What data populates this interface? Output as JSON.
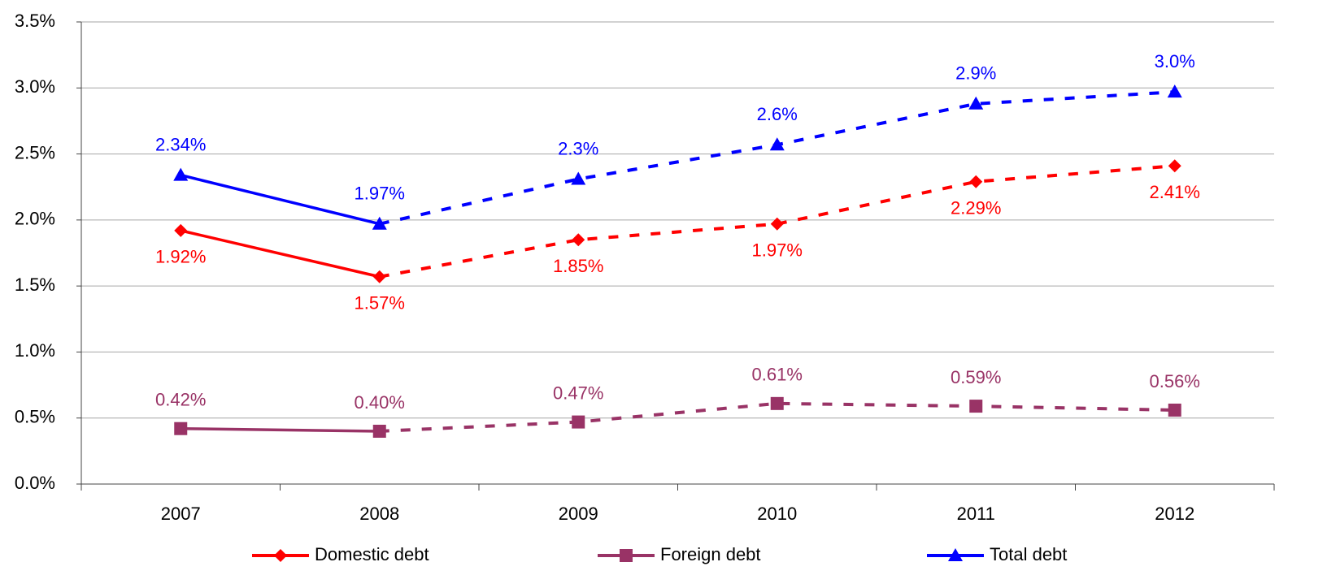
{
  "chart_data": {
    "type": "line",
    "categories": [
      "2007",
      "2008",
      "2009",
      "2010",
      "2011",
      "2012"
    ],
    "dashed_from": "2008",
    "series": [
      {
        "name": "Domestic debt",
        "color": "#ff0000",
        "marker": "diamond",
        "values": [
          1.92,
          1.57,
          1.85,
          1.97,
          2.29,
          2.41
        ],
        "value_labels": [
          "1.92%",
          "1.57%",
          "1.85%",
          "1.97%",
          "2.29%",
          "2.41%"
        ]
      },
      {
        "name": "Foreign debt",
        "color": "#993366",
        "marker": "square",
        "values": [
          0.42,
          0.4,
          0.47,
          0.61,
          0.59,
          0.56
        ],
        "value_labels": [
          "0.42%",
          "0.40%",
          "0.47%",
          "0.61%",
          "0.59%",
          "0.56%"
        ]
      },
      {
        "name": "Total debt",
        "color": "#0000ff",
        "marker": "triangle",
        "values": [
          2.34,
          1.97,
          2.31,
          2.57,
          2.88,
          2.97
        ],
        "value_labels": [
          "2.34%",
          "1.97%",
          "2.3%",
          "2.6%",
          "2.9%",
          "3.0%"
        ]
      }
    ],
    "ylim": [
      0,
      3.5
    ],
    "yticks": [
      {
        "value": 0,
        "label": "0.0%"
      },
      {
        "value": 0.5,
        "label": "0.5%"
      },
      {
        "value": 1,
        "label": "1.0%"
      },
      {
        "value": 1.5,
        "label": "1.5%"
      },
      {
        "value": 2,
        "label": "2.0%"
      },
      {
        "value": 2.5,
        "label": "2.5%"
      },
      {
        "value": 3,
        "label": "3.0%"
      },
      {
        "value": 3.5,
        "label": "3.5%"
      }
    ],
    "grid": true,
    "legend": "bottom"
  }
}
